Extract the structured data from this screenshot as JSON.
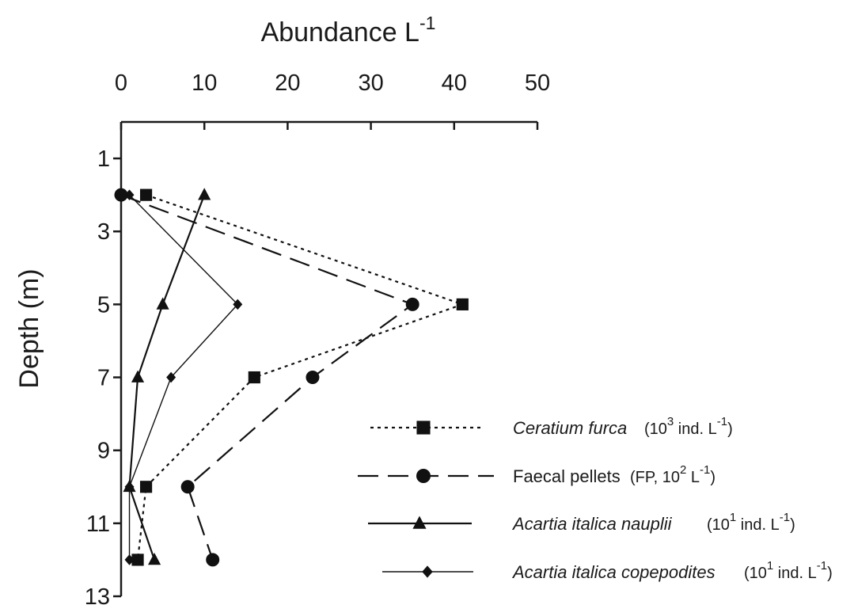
{
  "chart_data": {
    "type": "line",
    "xlabel": "Abundance L",
    "xlabel_superscript": "-1",
    "ylabel": "Depth (m)",
    "xlim": [
      0,
      50
    ],
    "ylim": [
      13,
      0
    ],
    "x_ticks": [
      "0",
      "10",
      "20",
      "30",
      "40",
      "50"
    ],
    "y_ticks": [
      "1",
      "3",
      "5",
      "7",
      "9",
      "11",
      "13"
    ],
    "x_axis_position": "top",
    "y_axis_inverted": true,
    "grid": false,
    "legend_position": "bottom-right",
    "series": [
      {
        "name": "Ceratium furca",
        "unit_parts": [
          "(10",
          "3",
          " ind. L",
          "-1",
          ")"
        ],
        "italic": true,
        "line_style": "dotted",
        "line_weight": "medium",
        "marker": "square",
        "points": [
          {
            "x": 3,
            "y": 2
          },
          {
            "x": 41,
            "y": 5
          },
          {
            "x": 16,
            "y": 7
          },
          {
            "x": 3,
            "y": 10
          },
          {
            "x": 2,
            "y": 12
          }
        ]
      },
      {
        "name": "Faecal pellets",
        "unit_parts": [
          "(FP, 10",
          "2",
          " L",
          "-1",
          ")"
        ],
        "italic": false,
        "line_style": "long-dash",
        "line_weight": "medium",
        "marker": "circle",
        "points": [
          {
            "x": 0,
            "y": 2
          },
          {
            "x": 35,
            "y": 5
          },
          {
            "x": 23,
            "y": 7
          },
          {
            "x": 8,
            "y": 10
          },
          {
            "x": 11,
            "y": 12
          }
        ]
      },
      {
        "name": "Acartia italica nauplii",
        "unit_parts": [
          "(10",
          "1",
          " ind. L",
          "-1",
          ")"
        ],
        "italic": true,
        "line_style": "solid",
        "line_weight": "medium",
        "marker": "triangle",
        "points": [
          {
            "x": 10,
            "y": 2
          },
          {
            "x": 5,
            "y": 5
          },
          {
            "x": 2,
            "y": 7
          },
          {
            "x": 1,
            "y": 10
          },
          {
            "x": 4,
            "y": 12
          }
        ]
      },
      {
        "name": "Acartia italica copepodites",
        "unit_parts": [
          "(10",
          "1",
          " ind. L",
          "-1",
          ")"
        ],
        "italic": true,
        "line_style": "solid",
        "line_weight": "thin",
        "marker": "diamond",
        "points": [
          {
            "x": 1,
            "y": 2
          },
          {
            "x": 14,
            "y": 5
          },
          {
            "x": 6,
            "y": 7
          },
          {
            "x": 1,
            "y": 10
          },
          {
            "x": 1,
            "y": 12
          }
        ]
      }
    ]
  }
}
